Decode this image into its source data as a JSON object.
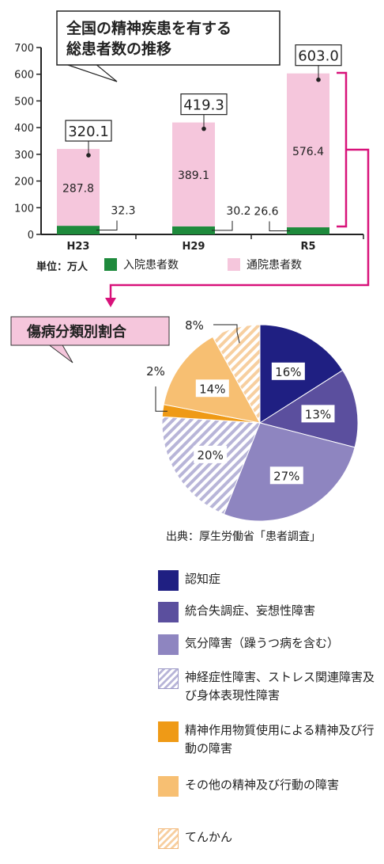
{
  "bar_title": "全国の精神疾患を有する総患者数の推移",
  "bar_title_lines": [
    "全国の精神疾患を有する",
    "総患者数の推移"
  ],
  "pie_title": "傷病分類別割合",
  "unit_label": "単位：万人",
  "source": "出典：厚生労働省「患者調査」",
  "colors": {
    "inpatient": "#1e8a3c",
    "outpatient": "#f5c6dc",
    "dementia": "#1f1f82",
    "schizophrenia": "#5b4f9e",
    "mood": "#8e85c0",
    "neurotic": "#b8b5d8",
    "substance": "#ef9a16",
    "other_mental": "#f7bf72",
    "epilepsy": "#f7cfa0",
    "accent": "#d8127a"
  },
  "chart_data": [
    {
      "type": "bar",
      "stacked": true,
      "title": "全国の精神疾患を有する総患者数の推移",
      "categories": [
        "H23",
        "H29",
        "R5"
      ],
      "series": [
        {
          "name": "入院患者数",
          "values": [
            32.3,
            30.2,
            26.6
          ],
          "labels": [
            "32.3",
            "30.2",
            "26.6"
          ]
        },
        {
          "name": "通院患者数",
          "values": [
            287.8,
            389.1,
            576.4
          ],
          "labels": [
            "287.8",
            "389.1",
            "576.4"
          ]
        }
      ],
      "totals": [
        320.1,
        419.3,
        603.0
      ],
      "total_labels": [
        "320.1",
        "419.3",
        "603.0"
      ],
      "ylim": [
        0,
        700
      ],
      "yticks": [
        0,
        100,
        200,
        300,
        400,
        500,
        600,
        700
      ],
      "ytick_labels": [
        "0",
        "100",
        "200",
        "300",
        "400",
        "500",
        "600",
        "700"
      ],
      "grid": false,
      "legend": "bottom"
    },
    {
      "type": "pie",
      "title": "傷病分類別割合",
      "slices": [
        {
          "name": "認知症",
          "value": 16,
          "label": "16%",
          "color_key": "dementia"
        },
        {
          "name": "統合失調症、妄想性障害",
          "value": 13,
          "label": "13%",
          "color_key": "schizophrenia"
        },
        {
          "name": "気分障害（躁うつ病を含む）",
          "value": 27,
          "label": "27%",
          "color_key": "mood"
        },
        {
          "name": "神経症性障害、ストレス関連障害及び身体表現性障害",
          "value": 20,
          "label": "20%",
          "color_key": "neurotic"
        },
        {
          "name": "精神作用物質使用による精神及び行動の障害",
          "value": 2,
          "label": "2%",
          "color_key": "substance"
        },
        {
          "name": "その他の精神及び行動の障害",
          "value": 14,
          "label": "14%",
          "color_key": "other_mental"
        },
        {
          "name": "てんかん",
          "value": 8,
          "label": "8%",
          "color_key": "epilepsy"
        }
      ],
      "legend": "bottom"
    }
  ],
  "legend_items": [
    {
      "label": "認知症"
    },
    {
      "label": "統合失調症、妄想性障害"
    },
    {
      "label": "気分障害（躁うつ病を含む）"
    },
    {
      "label": "神経症性障害、ストレス関連障害及び身体表現性障害"
    },
    {
      "label": "精神作用物質使用による精神及び行動の障害"
    },
    {
      "label": "その他の精神及び行動の障害"
    },
    {
      "label": "てんかん"
    }
  ]
}
